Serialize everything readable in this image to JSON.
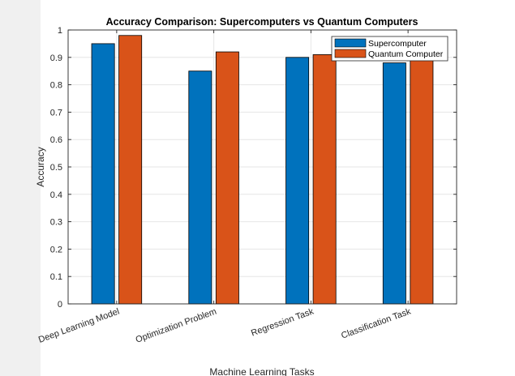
{
  "chart_data": {
    "type": "bar",
    "title": "Accuracy Comparison: Supercomputers vs Quantum Computers",
    "xlabel": "Machine Learning Tasks",
    "ylabel": "Accuracy",
    "categories": [
      "Deep Learning Model",
      "Optimization Problem",
      "Regression Task",
      "Classification Task"
    ],
    "series": [
      {
        "name": "Supercomputer",
        "color": "#0072BD",
        "values": [
          0.95,
          0.85,
          0.9,
          0.88
        ]
      },
      {
        "name": "Quantum Computer",
        "color": "#D95319",
        "values": [
          0.98,
          0.92,
          0.91,
          0.89
        ]
      }
    ],
    "ylim": [
      0,
      1
    ],
    "yticks": [
      0,
      0.1,
      0.2,
      0.3,
      0.4,
      0.5,
      0.6,
      0.7,
      0.8,
      0.9,
      1
    ],
    "ytick_labels": [
      "0",
      "0.1",
      "0.2",
      "0.3",
      "0.4",
      "0.5",
      "0.6",
      "0.7",
      "0.8",
      "0.9",
      "1"
    ],
    "grid": true,
    "legend_position": "top-right"
  }
}
